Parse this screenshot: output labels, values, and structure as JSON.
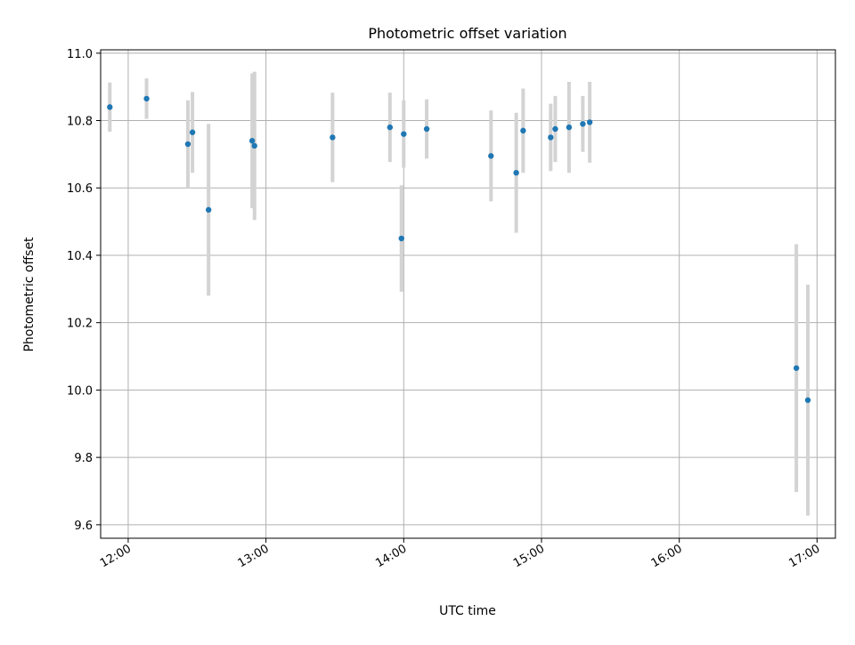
{
  "chart_data": {
    "type": "scatter",
    "title": "Photometric offset variation",
    "xlabel": "UTC time",
    "ylabel": "Photometric offset",
    "x_ticks": [
      "12:00",
      "13:00",
      "14:00",
      "15:00",
      "16:00",
      "17:00"
    ],
    "y_ticks": [
      "9.6",
      "9.8",
      "10.0",
      "10.2",
      "10.4",
      "10.6",
      "10.8",
      "11.0"
    ],
    "ylim": [
      9.56,
      11.01
    ],
    "xlim": [
      "11:48",
      "17:08"
    ],
    "grid": true,
    "series": [
      {
        "marker_color": "#1f77b4",
        "errorbar_color": "#d3d3d3",
        "points": [
          {
            "x": "11:52",
            "y": 10.84,
            "yerr": 0.073
          },
          {
            "x": "12:08",
            "y": 10.865,
            "yerr": 0.06
          },
          {
            "x": "12:26",
            "y": 10.73,
            "yerr": 0.13
          },
          {
            "x": "12:28",
            "y": 10.765,
            "yerr": 0.12
          },
          {
            "x": "12:35",
            "y": 10.535,
            "yerr": 0.255
          },
          {
            "x": "12:54",
            "y": 10.74,
            "yerr": 0.2
          },
          {
            "x": "12:55",
            "y": 10.725,
            "yerr": 0.22
          },
          {
            "x": "13:29",
            "y": 10.75,
            "yerr": 0.133
          },
          {
            "x": "13:54",
            "y": 10.78,
            "yerr": 0.103
          },
          {
            "x": "13:59",
            "y": 10.45,
            "yerr": 0.158
          },
          {
            "x": "14:00",
            "y": 10.76,
            "yerr": 0.1
          },
          {
            "x": "14:10",
            "y": 10.775,
            "yerr": 0.088
          },
          {
            "x": "14:38",
            "y": 10.695,
            "yerr": 0.135
          },
          {
            "x": "14:49",
            "y": 10.645,
            "yerr": 0.178
          },
          {
            "x": "14:52",
            "y": 10.77,
            "yerr": 0.125
          },
          {
            "x": "15:04",
            "y": 10.75,
            "yerr": 0.1
          },
          {
            "x": "15:06",
            "y": 10.775,
            "yerr": 0.098
          },
          {
            "x": "15:12",
            "y": 10.78,
            "yerr": 0.135
          },
          {
            "x": "15:18",
            "y": 10.79,
            "yerr": 0.083
          },
          {
            "x": "15:21",
            "y": 10.795,
            "yerr": 0.12
          },
          {
            "x": "16:51",
            "y": 10.065,
            "yerr": 0.368
          },
          {
            "x": "16:56",
            "y": 9.97,
            "yerr": 0.343
          }
        ]
      }
    ]
  }
}
